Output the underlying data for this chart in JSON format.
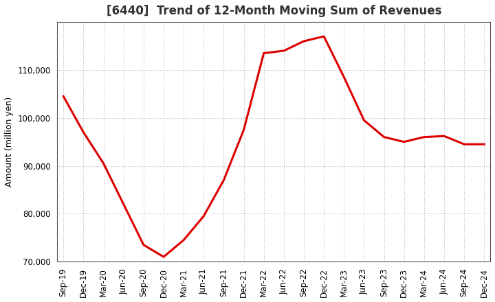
{
  "title": "[6440]  Trend of 12-Month Moving Sum of Revenues",
  "ylabel": "Amount (million yen)",
  "line_color": "#dd0000",
  "line_width": 2.2,
  "background_color": "#ffffff",
  "grid_color": "#999999",
  "xlabels": [
    "Sep-19",
    "Dec-19",
    "Mar-20",
    "Jun-20",
    "Sep-20",
    "Dec-20",
    "Mar-21",
    "Jun-21",
    "Sep-21",
    "Dec-21",
    "Mar-22",
    "Jun-22",
    "Sep-22",
    "Dec-22",
    "Mar-23",
    "Jun-23",
    "Sep-23",
    "Dec-23",
    "Mar-24",
    "Jun-24",
    "Sep-24",
    "Dec-24"
  ],
  "values": [
    104500,
    97000,
    90500,
    82000,
    73500,
    71000,
    74500,
    79500,
    87000,
    97500,
    113500,
    114000,
    116000,
    117000,
    108500,
    99500,
    96000,
    95000,
    96000,
    96200,
    94500,
    94500
  ],
  "ylim": [
    70000,
    120000
  ],
  "yticks": [
    70000,
    80000,
    90000,
    100000,
    110000
  ],
  "title_fontsize": 12,
  "label_fontsize": 9,
  "tick_fontsize": 8.5
}
